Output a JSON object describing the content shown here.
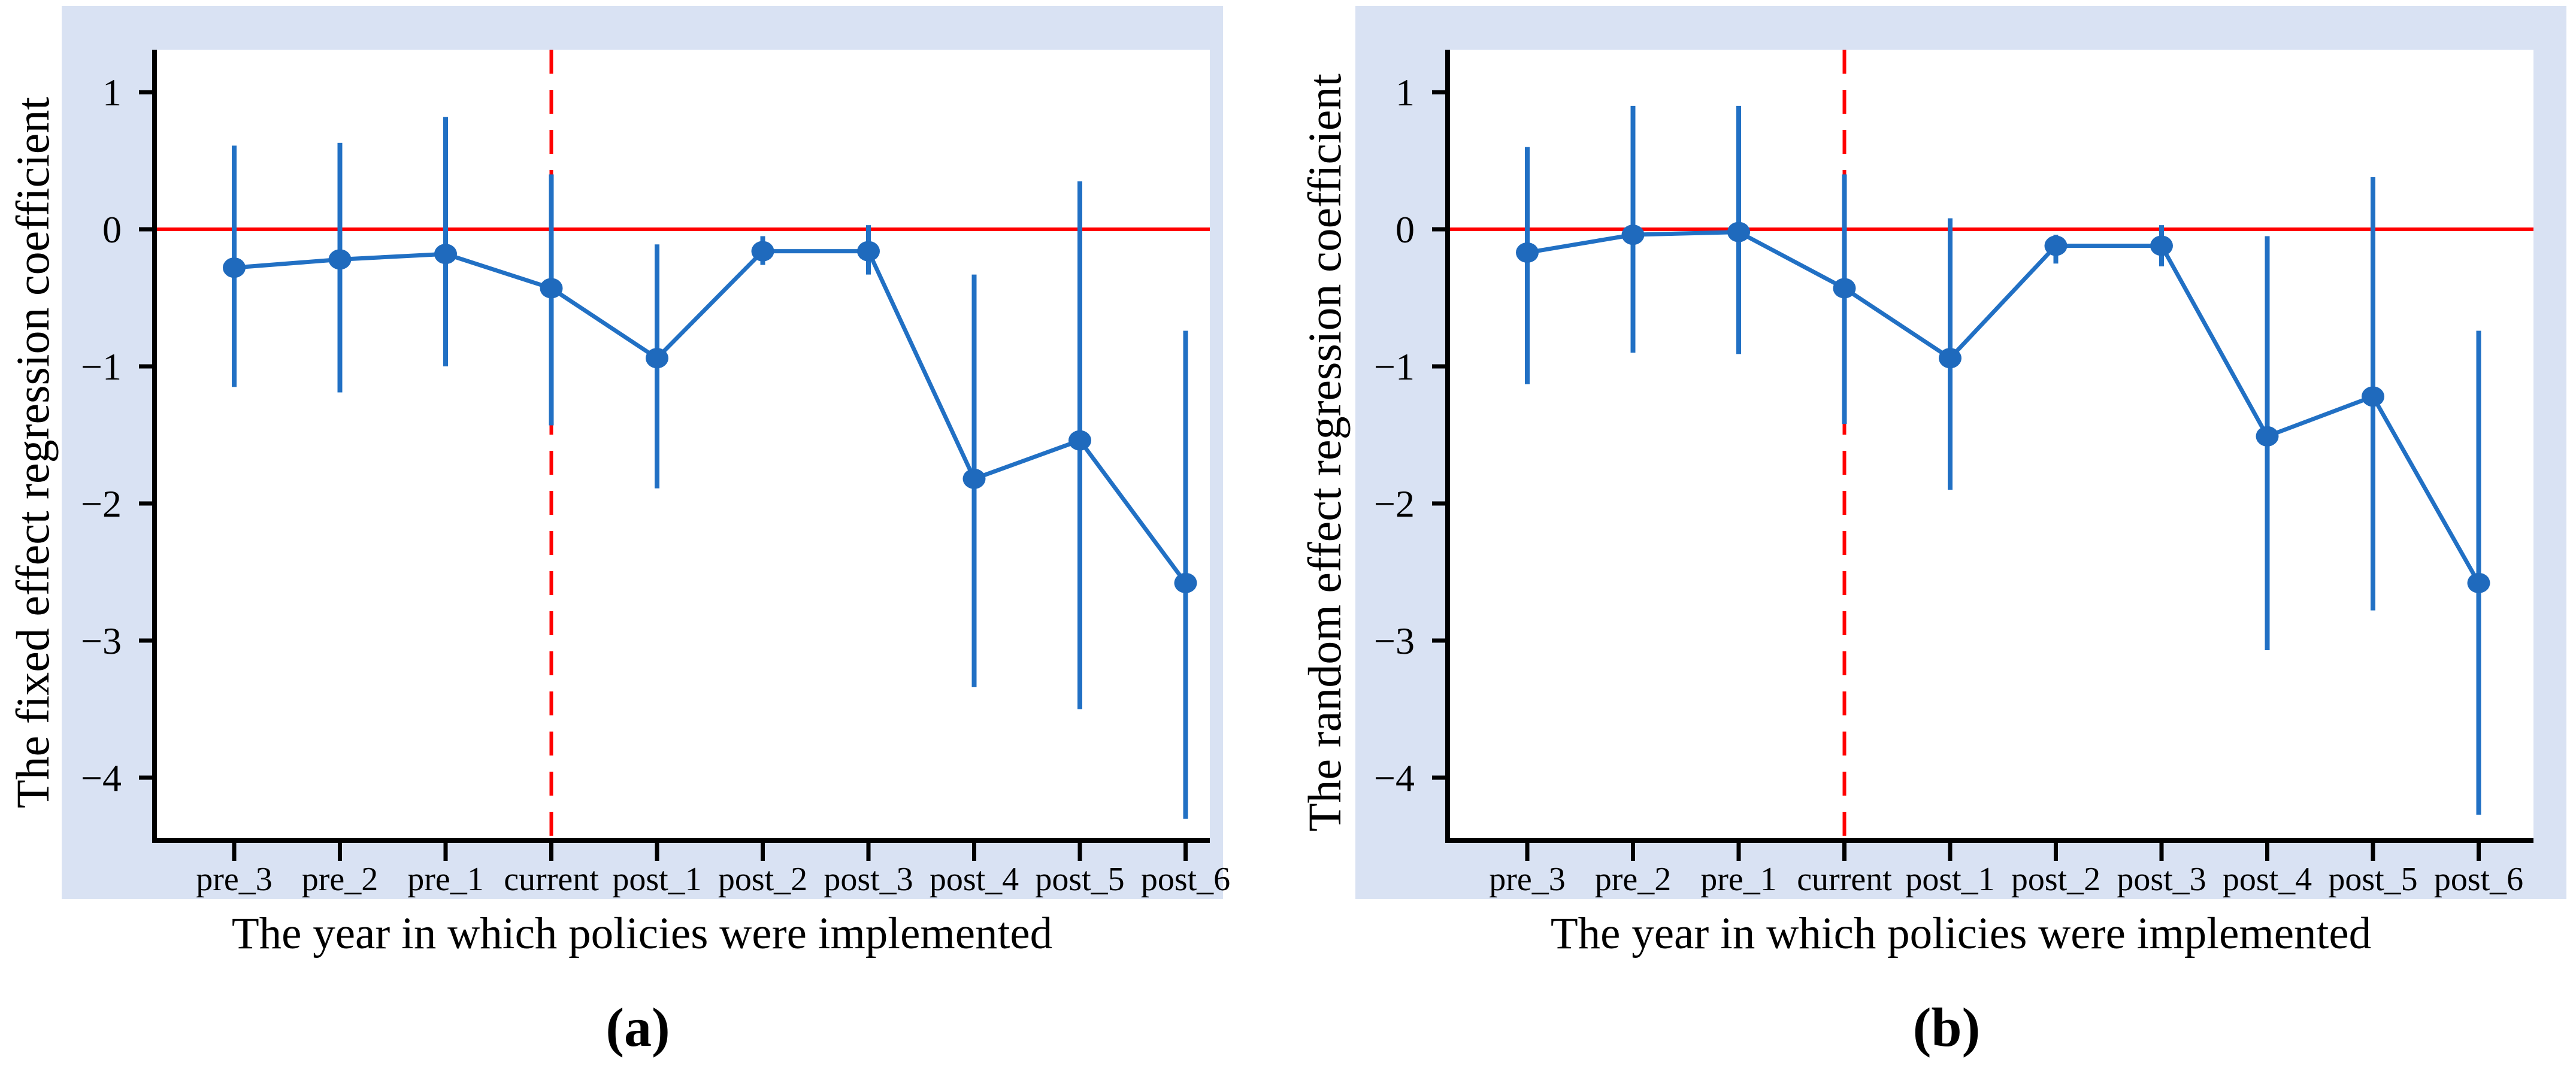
{
  "page": {
    "background_color": "#ffffff"
  },
  "figures": [
    {
      "caption": "(a)",
      "y_axis_label": "The fixed effect regression coefficient",
      "x_axis_label": "The year in which policies were implemented"
    },
    {
      "caption": "(b)",
      "y_axis_label": "The random effect regression coefficient",
      "x_axis_label": "The year in which policies were implemented"
    }
  ],
  "chart_data": [
    {
      "type": "line",
      "panel": "a",
      "title": "",
      "xlabel": "The year in which policies were implemented",
      "ylabel": "The fixed effect regression coefficient",
      "categories": [
        "pre_3",
        "pre_2",
        "pre_1",
        "current",
        "post_1",
        "post_2",
        "post_3",
        "post_4",
        "post_5",
        "post_6"
      ],
      "series": [
        {
          "name": "fixed effect coefficient",
          "values": [
            -0.28,
            -0.22,
            -0.18,
            -0.43,
            -0.94,
            -0.16,
            -0.16,
            -1.82,
            -1.54,
            -2.58
          ]
        }
      ],
      "error_bars": {
        "low": [
          -1.15,
          -1.19,
          -1.0,
          -1.43,
          -1.89,
          -0.26,
          -0.33,
          -3.34,
          -3.5,
          -4.3
        ],
        "high": [
          0.61,
          0.63,
          0.82,
          0.4,
          -0.11,
          -0.05,
          0.03,
          -0.33,
          0.35,
          -0.74
        ]
      },
      "y_ticks": [
        1,
        0,
        -1,
        -2,
        -3,
        -4
      ],
      "ylim": [
        -4.45,
        1.31
      ],
      "reference_lines": {
        "horizontal_y": 0,
        "vertical_category": "current",
        "vertical_style": "dashed"
      },
      "grid": false,
      "legend": false,
      "colors": {
        "series": "#2170c4",
        "marker": "#1f6abd",
        "reference": "#ff0000",
        "panel_bg": "#d9e2f3",
        "plot_bg": "#ffffff",
        "axis": "#000000"
      }
    },
    {
      "type": "line",
      "panel": "b",
      "title": "",
      "xlabel": "The year in which policies were implemented",
      "ylabel": "The random effect regression coefficient",
      "categories": [
        "pre_3",
        "pre_2",
        "pre_1",
        "current",
        "post_1",
        "post_2",
        "post_3",
        "post_4",
        "post_5",
        "post_6"
      ],
      "series": [
        {
          "name": "random effect coefficient",
          "values": [
            -0.17,
            -0.04,
            -0.02,
            -0.43,
            -0.94,
            -0.12,
            -0.12,
            -1.51,
            -1.22,
            -2.58
          ]
        }
      ],
      "error_bars": {
        "low": [
          -1.13,
          -0.9,
          -0.91,
          -1.42,
          -1.9,
          -0.25,
          -0.27,
          -3.07,
          -2.78,
          -4.27
        ],
        "high": [
          0.6,
          0.9,
          0.9,
          0.4,
          0.08,
          -0.04,
          0.03,
          -0.05,
          0.38,
          -0.74
        ]
      },
      "y_ticks": [
        1,
        0,
        -1,
        -2,
        -3,
        -4
      ],
      "ylim": [
        -4.45,
        1.31
      ],
      "reference_lines": {
        "horizontal_y": 0,
        "vertical_category": "current",
        "vertical_style": "dashed"
      },
      "grid": false,
      "legend": false,
      "colors": {
        "series": "#2170c4",
        "marker": "#1f6abd",
        "reference": "#ff0000",
        "panel_bg": "#d9e2f3",
        "plot_bg": "#ffffff",
        "axis": "#000000"
      }
    }
  ]
}
